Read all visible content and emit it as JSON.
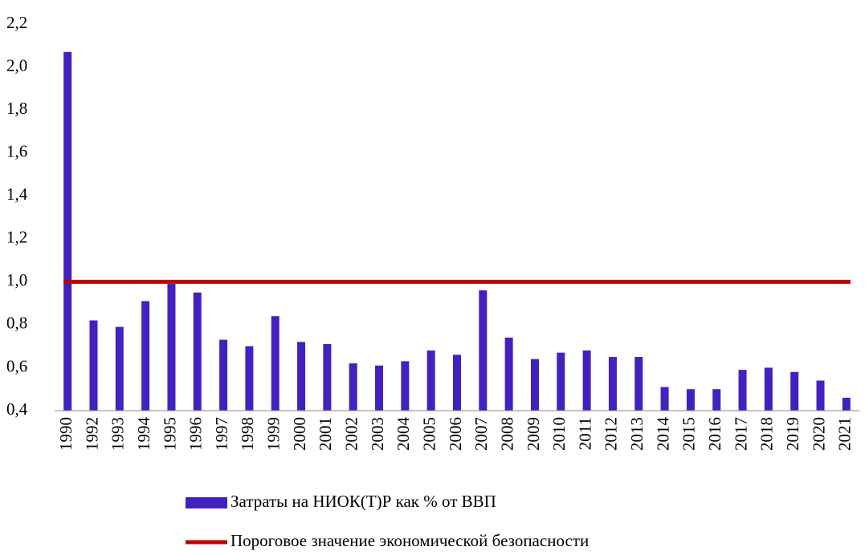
{
  "chart_data": {
    "type": "bar",
    "categories": [
      "1990",
      "1992",
      "1993",
      "1994",
      "1995",
      "1996",
      "1997",
      "1998",
      "1999",
      "2000",
      "2001",
      "2002",
      "2003",
      "2004",
      "2005",
      "2006",
      "2007",
      "2008",
      "2009",
      "2010",
      "2011",
      "2012",
      "2013",
      "2014",
      "2015",
      "2016",
      "2017",
      "2018",
      "2019",
      "2020",
      "2021"
    ],
    "series": [
      {
        "name": "Затраты на НИОК(Т)Р как % от ВВП",
        "type": "bar",
        "color": "#4221c0",
        "values": [
          2.07,
          0.82,
          0.79,
          0.91,
          0.99,
          0.95,
          0.73,
          0.7,
          0.84,
          0.72,
          0.71,
          0.62,
          0.61,
          0.63,
          0.68,
          0.66,
          0.96,
          0.74,
          0.64,
          0.67,
          0.68,
          0.65,
          0.65,
          0.51,
          0.5,
          0.5,
          0.59,
          0.6,
          0.58,
          0.54,
          0.46
        ]
      },
      {
        "name": "Пороговое значение экономической безопасности",
        "type": "line",
        "color": "#c00000",
        "values": [
          1.0,
          1.0,
          1.0,
          1.0,
          1.0,
          1.0,
          1.0,
          1.0,
          1.0,
          1.0,
          1.0,
          1.0,
          1.0,
          1.0,
          1.0,
          1.0,
          1.0,
          1.0,
          1.0,
          1.0,
          1.0,
          1.0,
          1.0,
          1.0,
          1.0,
          1.0,
          1.0,
          1.0,
          1.0,
          1.0,
          1.0
        ]
      }
    ],
    "ylim": [
      0.4,
      2.2
    ],
    "yticks": [
      {
        "value": 0.4,
        "label": "0,4"
      },
      {
        "value": 0.6,
        "label": "0,6"
      },
      {
        "value": 0.8,
        "label": "0,8"
      },
      {
        "value": 1.0,
        "label": "1,0"
      },
      {
        "value": 1.2,
        "label": "1,2"
      },
      {
        "value": 1.4,
        "label": "1,4"
      },
      {
        "value": 1.6,
        "label": "1,6"
      },
      {
        "value": 1.8,
        "label": "1,8"
      },
      {
        "value": 2.0,
        "label": "2,0"
      },
      {
        "value": 2.2,
        "label": "2,2"
      }
    ],
    "grid": false,
    "legend": "bottom"
  }
}
